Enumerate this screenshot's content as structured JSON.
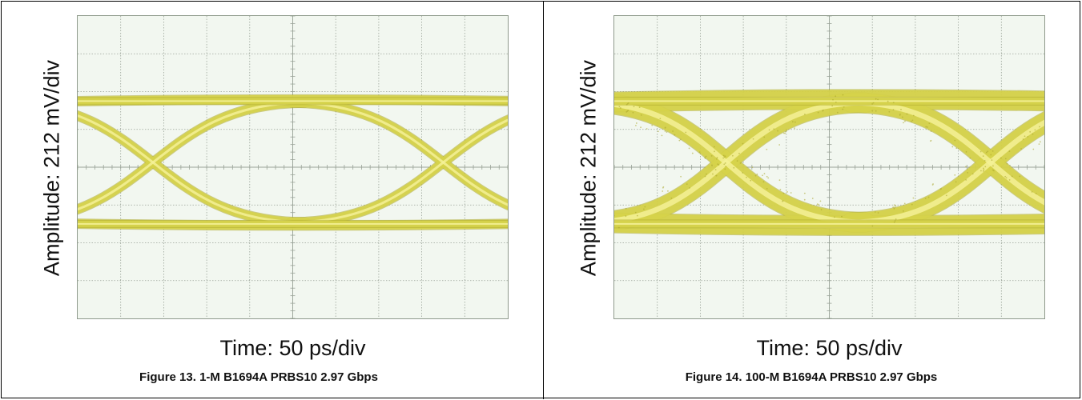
{
  "figures": [
    {
      "caption": "Figure 13. 1-M B1694A PRBS10 2.97 Gbps",
      "ylabel": "Amplitude: 212 mV/div",
      "xlabel": "Time: 50 ps/div"
    },
    {
      "caption": "Figure 14.  100-M B1694A PRBS10 2.97 Gbps",
      "ylabel": "Amplitude: 212 mV/div",
      "xlabel": "Time: 50 ps/div"
    }
  ],
  "colors": {
    "background": "#f2f7f0",
    "grid": "#9aa398",
    "trace": "#d6d34a",
    "trace_core": "#f4f197",
    "trace_edge": "#a9a52a"
  },
  "chart_data": [
    {
      "type": "eye_diagram",
      "xlabel": "Time: 50 ps/div",
      "ylabel": "Amplitude: 212 mV/div",
      "x_divisions": 10,
      "y_divisions": 8,
      "x_unit_per_div_ps": 50,
      "y_unit_per_div_mv": 212,
      "grid": true,
      "high_level_div": 1.75,
      "low_level_div": -1.5,
      "crossing_times_div": [
        1.75,
        8.5
      ],
      "crossing_level_div": 0.05,
      "trace_thickness": "narrow"
    },
    {
      "type": "eye_diagram",
      "xlabel": "Time: 50 ps/div",
      "ylabel": "Amplitude: 212 mV/div",
      "x_divisions": 10,
      "y_divisions": 8,
      "x_unit_per_div_ps": 50,
      "y_unit_per_div_mv": 212,
      "grid": true,
      "high_level_div": 1.75,
      "low_level_div": -1.5,
      "crossing_times_div": [
        2.6,
        8.75
      ],
      "crossing_level_div": 0.05,
      "trace_thickness": "wide"
    }
  ]
}
